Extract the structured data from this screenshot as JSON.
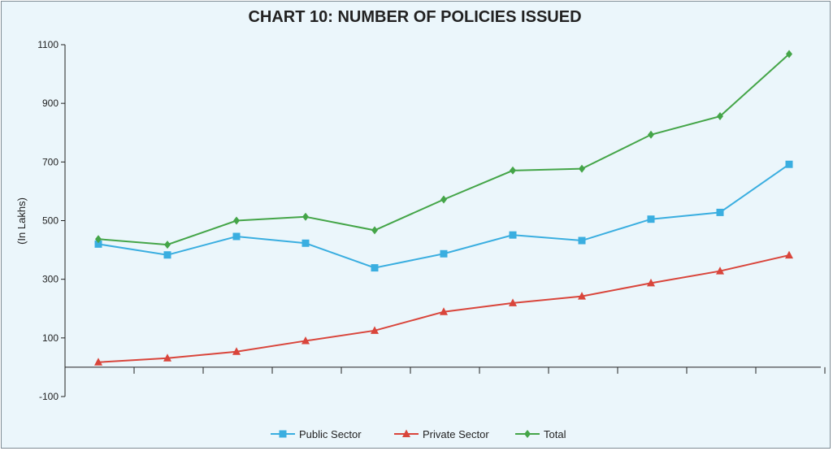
{
  "chart_data": {
    "type": "line",
    "title": "CHART 10: NUMBER OF POLICIES ISSUED",
    "ylabel": "(In Lakhs)",
    "xlabel": "",
    "ylim": [
      -100,
      1100
    ],
    "yticks": [
      -100,
      100,
      300,
      500,
      700,
      900,
      1100
    ],
    "x_count": 11,
    "grid": false,
    "legend_position": "bottom",
    "series": [
      {
        "name": "Public Sector",
        "color": "#3aaee0",
        "marker": "square",
        "values": [
          420,
          383,
          446,
          423,
          339,
          387,
          451,
          432,
          505,
          528,
          692
        ]
      },
      {
        "name": "Private Sector",
        "color": "#d9453b",
        "marker": "triangle",
        "values": [
          17,
          31,
          53,
          90,
          125,
          189,
          219,
          242,
          287,
          328,
          382
        ]
      },
      {
        "name": "Total",
        "color": "#44a548",
        "marker": "diamond",
        "values": [
          437,
          418,
          500,
          513,
          467,
          572,
          671,
          677,
          793,
          856,
          1068
        ]
      }
    ]
  }
}
